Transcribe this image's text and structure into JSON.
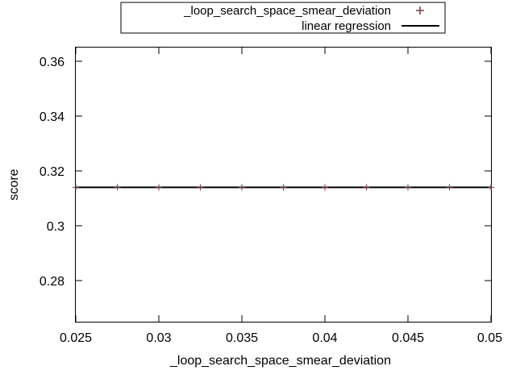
{
  "chart_data": {
    "type": "scatter",
    "xlabel": "_loop_search_space_smear_deviation",
    "ylabel": "score",
    "xlim": [
      0.025,
      0.05
    ],
    "ylim": [
      0.265,
      0.365
    ],
    "xticks": [
      0.025,
      0.03,
      0.035,
      0.04,
      0.045,
      0.05
    ],
    "xtick_labels": [
      "0.025",
      "0.03",
      "0.035",
      "0.04",
      "0.045",
      "0.05"
    ],
    "yticks": [
      0.28,
      0.3,
      0.32,
      0.34,
      0.36
    ],
    "ytick_labels": [
      "0.28",
      "0.3",
      "0.32",
      "0.34",
      "0.36"
    ],
    "legend_position": "top-center",
    "grid": false,
    "series": [
      {
        "name": "_loop_search_space_smear_deviation",
        "kind": "points",
        "marker": "plus",
        "color": "#7a3b44",
        "x": [
          0.025,
          0.0275,
          0.03,
          0.0325,
          0.035,
          0.0375,
          0.04,
          0.0425,
          0.045,
          0.0475,
          0.05
        ],
        "y": [
          0.314,
          0.314,
          0.314,
          0.314,
          0.314,
          0.314,
          0.314,
          0.314,
          0.314,
          0.314,
          0.314
        ]
      },
      {
        "name": "linear regression",
        "kind": "line",
        "color": "#000000",
        "x": [
          0.025,
          0.05
        ],
        "y": [
          0.314,
          0.314
        ]
      }
    ]
  }
}
